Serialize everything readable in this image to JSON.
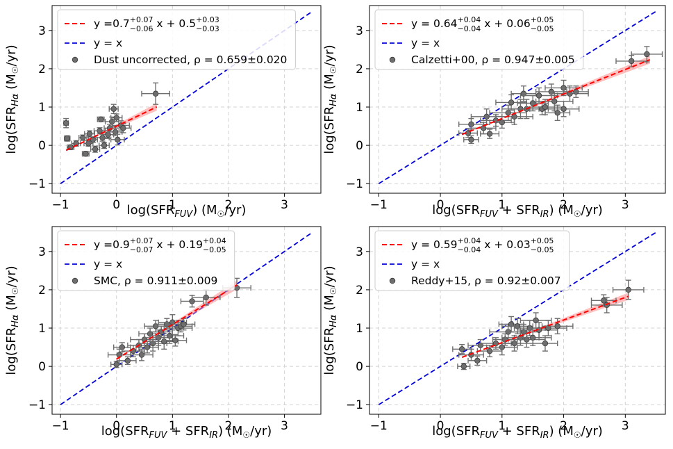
{
  "colors": {
    "fit": "#ff0000",
    "fit_band": "#ff8a8a",
    "identity": "#0000d8",
    "points": "#6e6e6e",
    "grid": "#d3d3d3"
  },
  "chart_data": [
    {
      "type": "scatter",
      "panel": "top-left",
      "xlabel": "log(SFR_FUV) (M☉/yr)",
      "xlabel_parts": {
        "pre": "log(SFR",
        "sub": "FUV",
        "post": ") (M",
        "sun": "☉",
        "end": "/yr)"
      },
      "ylabel": "log(SFR_Hα (M☉/yr)",
      "ylabel_parts": {
        "pre": "log(SFR",
        "sub": "Hα",
        "post": " (M",
        "sun": "☉",
        "end": "/yr)"
      },
      "xlim": [
        -1.15,
        3.65
      ],
      "ylim": [
        -1.25,
        3.65
      ],
      "xticks": [
        -1,
        0,
        1,
        2,
        3
      ],
      "yticks": [
        -1,
        0,
        1,
        2,
        3
      ],
      "xtick_labels": [
        "−1",
        "0",
        "1",
        "2",
        "3"
      ],
      "ytick_labels": [
        "−1",
        "0",
        "1",
        "2",
        "3"
      ],
      "grid": true,
      "legend_position": "top-left",
      "legend": {
        "fit": {
          "pre": "y =0.7",
          "slope_up": "+0.07",
          "slope_dn": "−0.06",
          "mid": " x + 0.5",
          "int_up": "+0.03",
          "int_dn": "−0.03"
        },
        "identity": "y = x",
        "points": "Dust uncorrected, ρ = 0.659±0.020"
      },
      "fit": {
        "slope": 0.7,
        "intercept": 0.5,
        "x_range": [
          -0.9,
          0.72
        ],
        "slope_err": 0.07
      },
      "identity": {
        "x_range": [
          -1,
          3.5
        ]
      },
      "points": [
        {
          "x": -0.9,
          "y": 0.58,
          "xerr": 0.04,
          "yerr": 0.12
        },
        {
          "x": -0.88,
          "y": 0.18,
          "xerr": 0.05,
          "yerr": 0.07
        },
        {
          "x": -0.82,
          "y": -0.05,
          "xerr": 0.06,
          "yerr": 0.06
        },
        {
          "x": -0.72,
          "y": 0.05,
          "xerr": 0.08,
          "yerr": 0.07
        },
        {
          "x": -0.6,
          "y": 0.2,
          "xerr": 0.07,
          "yerr": 0.07
        },
        {
          "x": -0.55,
          "y": -0.22,
          "xerr": 0.06,
          "yerr": 0.06
        },
        {
          "x": -0.5,
          "y": 0.05,
          "xerr": 0.08,
          "yerr": 0.07
        },
        {
          "x": -0.48,
          "y": 0.3,
          "xerr": 0.09,
          "yerr": 0.08
        },
        {
          "x": -0.42,
          "y": 0.15,
          "xerr": 0.08,
          "yerr": 0.07
        },
        {
          "x": -0.38,
          "y": -0.1,
          "xerr": 0.08,
          "yerr": 0.08
        },
        {
          "x": -0.3,
          "y": 0.38,
          "xerr": 0.1,
          "yerr": 0.08
        },
        {
          "x": -0.28,
          "y": 0.68,
          "xerr": 0.06,
          "yerr": 0.06
        },
        {
          "x": -0.25,
          "y": 0.2,
          "xerr": 0.12,
          "yerr": 0.09
        },
        {
          "x": -0.22,
          "y": 0.0,
          "xerr": 0.09,
          "yerr": 0.08
        },
        {
          "x": -0.15,
          "y": 0.28,
          "xerr": 0.1,
          "yerr": 0.1
        },
        {
          "x": -0.12,
          "y": 0.45,
          "xerr": 0.1,
          "yerr": 0.1
        },
        {
          "x": -0.08,
          "y": 0.62,
          "xerr": 0.12,
          "yerr": 0.12
        },
        {
          "x": -0.05,
          "y": 0.95,
          "xerr": 0.08,
          "yerr": 0.12
        },
        {
          "x": -0.02,
          "y": 0.35,
          "xerr": 0.12,
          "yerr": 0.1
        },
        {
          "x": 0.0,
          "y": 0.72,
          "xerr": 0.1,
          "yerr": 0.1
        },
        {
          "x": 0.02,
          "y": 0.15,
          "xerr": 0.12,
          "yerr": 0.14
        },
        {
          "x": 0.08,
          "y": 0.52,
          "xerr": 0.15,
          "yerr": 0.12
        },
        {
          "x": 0.12,
          "y": 0.45,
          "xerr": 0.14,
          "yerr": 0.12
        },
        {
          "x": 0.7,
          "y": 1.35,
          "xerr": 0.25,
          "yerr": 0.28
        }
      ]
    },
    {
      "type": "scatter",
      "panel": "top-right",
      "xlabel": "log(SFR_FUV + SFR_IR) (M☉/yr)",
      "xlabel_parts": {
        "pre": "log(SFR",
        "sub": "FUV",
        "mid": " + SFR",
        "sub2": "IR",
        "post": ") (M",
        "sun": "☉",
        "end": "/yr)"
      },
      "ylabel": "log(SFR_Hα (M☉/yr)",
      "ylabel_parts": {
        "pre": "log(SFR",
        "sub": "Hα",
        "post": " (M",
        "sun": "☉",
        "end": "/yr)"
      },
      "xlim": [
        -1.15,
        3.65
      ],
      "ylim": [
        -1.25,
        3.65
      ],
      "xticks": [
        -1,
        0,
        1,
        2,
        3
      ],
      "yticks": [
        -1,
        0,
        1,
        2,
        3
      ],
      "xtick_labels": [
        "−1",
        "0",
        "1",
        "2",
        "3"
      ],
      "ytick_labels": [
        "−1",
        "0",
        "1",
        "2",
        "3"
      ],
      "grid": true,
      "legend_position": "top-left",
      "legend": {
        "fit": {
          "pre": "y = 0.64",
          "slope_up": "+0.04",
          "slope_dn": "−0.04",
          "mid": " x + 0.06",
          "int_up": "+0.05",
          "int_dn": "−0.05"
        },
        "identity": "y = x",
        "points": "Calzetti+00, ρ = 0.947±0.005"
      },
      "fit": {
        "slope": 0.64,
        "intercept": 0.06,
        "x_range": [
          0.35,
          3.4
        ],
        "slope_err": 0.04
      },
      "identity": {
        "x_range": [
          -1,
          3.5
        ]
      },
      "points": [
        {
          "x": 0.45,
          "y": 0.32,
          "xerr": 0.15,
          "yerr": 0.12
        },
        {
          "x": 0.5,
          "y": 0.55,
          "xerr": 0.2,
          "yerr": 0.15
        },
        {
          "x": 0.5,
          "y": 0.15,
          "xerr": 0.12,
          "yerr": 0.1
        },
        {
          "x": 0.7,
          "y": 0.45,
          "xerr": 0.2,
          "yerr": 0.15
        },
        {
          "x": 0.75,
          "y": 0.75,
          "xerr": 0.25,
          "yerr": 0.2
        },
        {
          "x": 0.8,
          "y": 0.3,
          "xerr": 0.15,
          "yerr": 0.12
        },
        {
          "x": 0.9,
          "y": 0.65,
          "xerr": 0.25,
          "yerr": 0.15
        },
        {
          "x": 1.0,
          "y": 0.6,
          "xerr": 0.2,
          "yerr": 0.15
        },
        {
          "x": 1.1,
          "y": 0.85,
          "xerr": 0.3,
          "yerr": 0.2
        },
        {
          "x": 1.15,
          "y": 1.12,
          "xerr": 0.25,
          "yerr": 0.2
        },
        {
          "x": 1.2,
          "y": 0.75,
          "xerr": 0.3,
          "yerr": 0.2
        },
        {
          "x": 1.3,
          "y": 0.95,
          "xerr": 0.3,
          "yerr": 0.25
        },
        {
          "x": 1.35,
          "y": 1.35,
          "xerr": 0.2,
          "yerr": 0.2
        },
        {
          "x": 1.4,
          "y": 0.95,
          "xerr": 0.3,
          "yerr": 0.25
        },
        {
          "x": 1.5,
          "y": 1.1,
          "xerr": 0.25,
          "yerr": 0.2
        },
        {
          "x": 1.6,
          "y": 1.3,
          "xerr": 0.3,
          "yerr": 0.2
        },
        {
          "x": 1.65,
          "y": 0.95,
          "xerr": 0.2,
          "yerr": 0.15
        },
        {
          "x": 1.7,
          "y": 1.0,
          "xerr": 0.3,
          "yerr": 0.2
        },
        {
          "x": 1.8,
          "y": 1.4,
          "xerr": 0.25,
          "yerr": 0.2
        },
        {
          "x": 1.85,
          "y": 1.15,
          "xerr": 0.3,
          "yerr": 0.25
        },
        {
          "x": 1.9,
          "y": 0.85,
          "xerr": 0.2,
          "yerr": 0.2
        },
        {
          "x": 2.0,
          "y": 1.5,
          "xerr": 0.3,
          "yerr": 0.2
        },
        {
          "x": 2.0,
          "y": 0.95,
          "xerr": 0.25,
          "yerr": 0.2
        },
        {
          "x": 2.1,
          "y": 1.35,
          "xerr": 0.3,
          "yerr": 0.2
        },
        {
          "x": 2.2,
          "y": 1.4,
          "xerr": 0.2,
          "yerr": 0.15
        },
        {
          "x": 3.1,
          "y": 2.2,
          "xerr": 0.25,
          "yerr": 0.15
        },
        {
          "x": 3.35,
          "y": 2.38,
          "xerr": 0.25,
          "yerr": 0.2
        }
      ]
    },
    {
      "type": "scatter",
      "panel": "bottom-left",
      "xlabel": "log(SFR_FUV + SFR_IR) (M☉/yr)",
      "xlabel_parts": {
        "pre": "log(SFR",
        "sub": "FUV",
        "mid": " + SFR",
        "sub2": "IR",
        "post": ") (M",
        "sun": "☉",
        "end": "/yr)"
      },
      "ylabel": "log(SFR_Hα (M☉/yr)",
      "ylabel_parts": {
        "pre": "log(SFR",
        "sub": "Hα",
        "post": " (M",
        "sun": "☉",
        "end": "/yr)"
      },
      "xlim": [
        -1.15,
        3.65
      ],
      "ylim": [
        -1.25,
        3.65
      ],
      "xticks": [
        -1,
        0,
        1,
        2,
        3
      ],
      "yticks": [
        -1,
        0,
        1,
        2,
        3
      ],
      "xtick_labels": [
        "−1",
        "0",
        "1",
        "2",
        "3"
      ],
      "ytick_labels": [
        "−1",
        "0",
        "1",
        "2",
        "3"
      ],
      "grid": true,
      "legend_position": "top-left",
      "legend": {
        "fit": {
          "pre": "y =0.9",
          "slope_up": "+0.07",
          "slope_dn": "−0.07",
          "mid": " x + 0.19",
          "int_up": "+0.04",
          "int_dn": "−0.05"
        },
        "identity": "y = x",
        "points": "SMC, ρ = 0.911±0.009"
      },
      "fit": {
        "slope": 0.9,
        "intercept": 0.19,
        "x_range": [
          0.0,
          2.15
        ],
        "slope_err": 0.07
      },
      "identity": {
        "x_range": [
          -1,
          3.5
        ]
      },
      "points": [
        {
          "x": 0.0,
          "y": 0.05,
          "xerr": 0.1,
          "yerr": 0.08
        },
        {
          "x": 0.05,
          "y": 0.3,
          "xerr": 0.2,
          "yerr": 0.15
        },
        {
          "x": 0.1,
          "y": 0.5,
          "xerr": 0.15,
          "yerr": 0.12
        },
        {
          "x": 0.2,
          "y": 0.15,
          "xerr": 0.15,
          "yerr": 0.1
        },
        {
          "x": 0.3,
          "y": 0.4,
          "xerr": 0.2,
          "yerr": 0.15
        },
        {
          "x": 0.4,
          "y": 0.55,
          "xerr": 0.2,
          "yerr": 0.15
        },
        {
          "x": 0.45,
          "y": 0.3,
          "xerr": 0.2,
          "yerr": 0.15
        },
        {
          "x": 0.5,
          "y": 0.7,
          "xerr": 0.25,
          "yerr": 0.15
        },
        {
          "x": 0.55,
          "y": 0.5,
          "xerr": 0.2,
          "yerr": 0.15
        },
        {
          "x": 0.6,
          "y": 0.85,
          "xerr": 0.2,
          "yerr": 0.15
        },
        {
          "x": 0.65,
          "y": 0.6,
          "xerr": 0.25,
          "yerr": 0.2
        },
        {
          "x": 0.7,
          "y": 1.05,
          "xerr": 0.2,
          "yerr": 0.15
        },
        {
          "x": 0.75,
          "y": 0.75,
          "xerr": 0.25,
          "yerr": 0.2
        },
        {
          "x": 0.8,
          "y": 0.9,
          "xerr": 0.2,
          "yerr": 0.15
        },
        {
          "x": 0.85,
          "y": 0.65,
          "xerr": 0.25,
          "yerr": 0.2
        },
        {
          "x": 0.9,
          "y": 1.1,
          "xerr": 0.2,
          "yerr": 0.15
        },
        {
          "x": 0.95,
          "y": 0.8,
          "xerr": 0.25,
          "yerr": 0.2
        },
        {
          "x": 1.0,
          "y": 1.15,
          "xerr": 0.25,
          "yerr": 0.2
        },
        {
          "x": 1.05,
          "y": 0.68,
          "xerr": 0.2,
          "yerr": 0.15
        },
        {
          "x": 1.1,
          "y": 1.0,
          "xerr": 0.25,
          "yerr": 0.2
        },
        {
          "x": 1.15,
          "y": 1.05,
          "xerr": 0.2,
          "yerr": 0.15
        },
        {
          "x": 1.2,
          "y": 1.1,
          "xerr": 0.2,
          "yerr": 0.15
        },
        {
          "x": 1.35,
          "y": 1.7,
          "xerr": 0.2,
          "yerr": 0.15
        },
        {
          "x": 1.6,
          "y": 1.8,
          "xerr": 0.25,
          "yerr": 0.2
        },
        {
          "x": 2.15,
          "y": 2.05,
          "xerr": 0.25,
          "yerr": 0.25
        }
      ]
    },
    {
      "type": "scatter",
      "panel": "bottom-right",
      "xlabel": "log(SFR_FUV + SFR_IR) (M☉/yr)",
      "xlabel_parts": {
        "pre": "log(SFR",
        "sub": "FUV",
        "mid": " + SFR",
        "sub2": "IR",
        "post": ") (M",
        "sun": "☉",
        "end": "/yr)"
      },
      "ylabel": "log(SFR_Hα (M☉/yr)",
      "ylabel_parts": {
        "pre": "log(SFR",
        "sub": "Hα",
        "post": " (M",
        "sun": "☉",
        "end": "/yr)"
      },
      "xlim": [
        -1.15,
        3.65
      ],
      "ylim": [
        -1.25,
        3.65
      ],
      "xticks": [
        -1,
        0,
        1,
        2,
        3
      ],
      "yticks": [
        -1,
        0,
        1,
        2,
        3
      ],
      "xtick_labels": [
        "−1",
        "0",
        "1",
        "2",
        "3"
      ],
      "ytick_labels": [
        "−1",
        "0",
        "1",
        "2",
        "3"
      ],
      "grid": true,
      "legend_position": "top-left",
      "legend": {
        "fit": {
          "pre": "y = 0.59",
          "slope_up": "+0.04",
          "slope_dn": "−0.04",
          "mid": " x + 0.03",
          "int_up": "+0.05",
          "int_dn": "−0.05"
        },
        "identity": "y = x",
        "points": "Reddy+15, ρ = 0.92±0.007"
      },
      "fit": {
        "slope": 0.59,
        "intercept": 0.03,
        "x_range": [
          0.35,
          3.05
        ],
        "slope_err": 0.04
      },
      "identity": {
        "x_range": [
          -1,
          3.5
        ]
      },
      "points": [
        {
          "x": 0.35,
          "y": 0.45,
          "xerr": 0.15,
          "yerr": 0.12
        },
        {
          "x": 0.38,
          "y": 0.0,
          "xerr": 0.1,
          "yerr": 0.08
        },
        {
          "x": 0.5,
          "y": 0.3,
          "xerr": 0.2,
          "yerr": 0.15
        },
        {
          "x": 0.6,
          "y": 0.15,
          "xerr": 0.15,
          "yerr": 0.12
        },
        {
          "x": 0.65,
          "y": 0.55,
          "xerr": 0.2,
          "yerr": 0.15
        },
        {
          "x": 0.8,
          "y": 0.4,
          "xerr": 0.2,
          "yerr": 0.15
        },
        {
          "x": 0.9,
          "y": 0.6,
          "xerr": 0.25,
          "yerr": 0.15
        },
        {
          "x": 1.0,
          "y": 0.5,
          "xerr": 0.25,
          "yerr": 0.2
        },
        {
          "x": 1.05,
          "y": 0.7,
          "xerr": 0.2,
          "yerr": 0.15
        },
        {
          "x": 1.1,
          "y": 0.9,
          "xerr": 0.3,
          "yerr": 0.2
        },
        {
          "x": 1.15,
          "y": 1.1,
          "xerr": 0.2,
          "yerr": 0.2
        },
        {
          "x": 1.2,
          "y": 0.6,
          "xerr": 0.3,
          "yerr": 0.2
        },
        {
          "x": 1.25,
          "y": 1.05,
          "xerr": 0.25,
          "yerr": 0.2
        },
        {
          "x": 1.3,
          "y": 0.75,
          "xerr": 0.3,
          "yerr": 0.2
        },
        {
          "x": 1.35,
          "y": 0.9,
          "xerr": 0.25,
          "yerr": 0.2
        },
        {
          "x": 1.4,
          "y": 0.7,
          "xerr": 0.3,
          "yerr": 0.2
        },
        {
          "x": 1.45,
          "y": 1.0,
          "xerr": 0.25,
          "yerr": 0.2
        },
        {
          "x": 1.5,
          "y": 0.75,
          "xerr": 0.3,
          "yerr": 0.2
        },
        {
          "x": 1.55,
          "y": 1.2,
          "xerr": 0.25,
          "yerr": 0.2
        },
        {
          "x": 1.6,
          "y": 0.95,
          "xerr": 0.3,
          "yerr": 0.2
        },
        {
          "x": 1.7,
          "y": 0.6,
          "xerr": 0.2,
          "yerr": 0.2
        },
        {
          "x": 1.75,
          "y": 1.0,
          "xerr": 0.3,
          "yerr": 0.2
        },
        {
          "x": 1.9,
          "y": 1.05,
          "xerr": 0.25,
          "yerr": 0.2
        },
        {
          "x": 2.65,
          "y": 1.72,
          "xerr": 0.2,
          "yerr": 0.15
        },
        {
          "x": 2.7,
          "y": 1.6,
          "xerr": 0.25,
          "yerr": 0.2
        },
        {
          "x": 3.05,
          "y": 2.0,
          "xerr": 0.25,
          "yerr": 0.25
        }
      ]
    }
  ]
}
